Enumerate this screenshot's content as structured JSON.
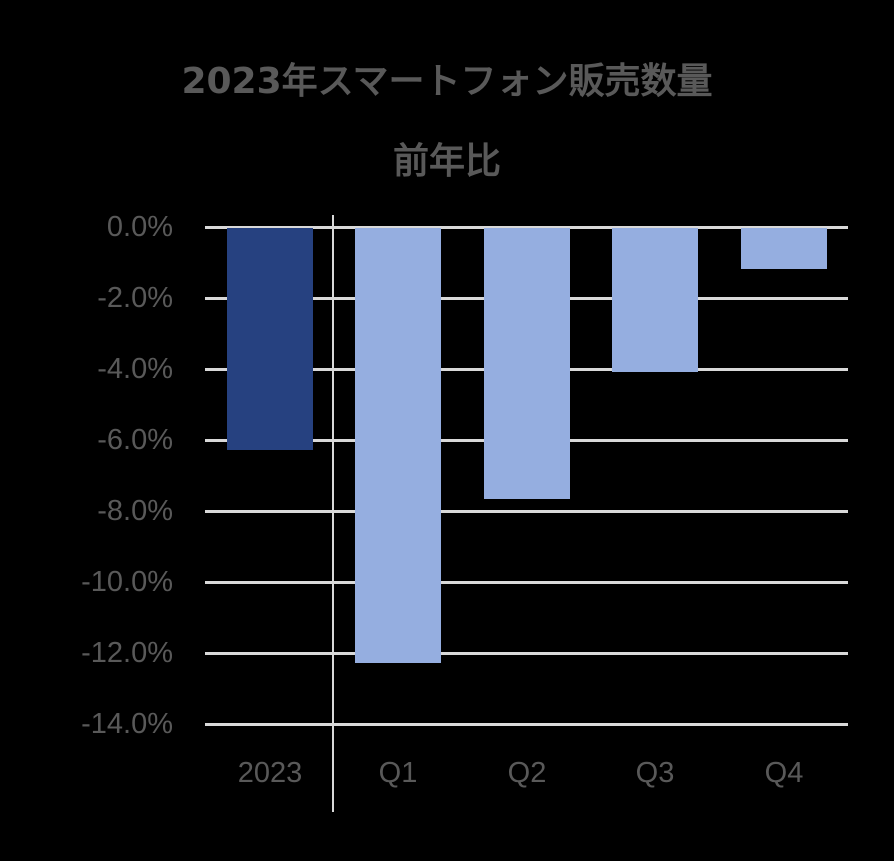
{
  "title": {
    "line1": "2023年スマートフォン販売数量",
    "line2": "前年比"
  },
  "colors": {
    "background": "#000000",
    "annual_bar": "#264180",
    "quarter_bar": "#95aee0",
    "gridline": "#d9d9d9",
    "text": "#595959"
  },
  "chart_data": {
    "type": "bar",
    "title": "2023年スマートフォン販売数量 前年比",
    "categories": [
      "2023",
      "Q1",
      "Q2",
      "Q3",
      "Q4"
    ],
    "values": [
      -6.3,
      -12.3,
      -7.7,
      -4.1,
      -1.2
    ],
    "unit": "%",
    "xlabel": "",
    "ylabel": "",
    "ylim": [
      -14.0,
      0.0
    ],
    "yticks": [
      "0.0%",
      "-2.0%",
      "-4.0%",
      "-6.0%",
      "-8.0%",
      "-10.0%",
      "-12.0%",
      "-14.0%"
    ],
    "grid": true,
    "legend": "none",
    "notes": "Annual 2023 bar in dark blue separated by vertical divider from quarterly bars in light blue"
  }
}
